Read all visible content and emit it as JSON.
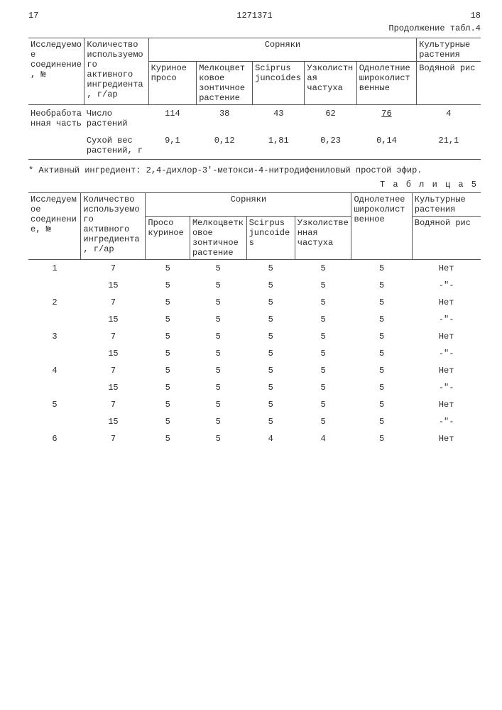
{
  "header": {
    "left_page": "17",
    "doc_number": "1271371",
    "right_page": "18",
    "continuation": "Продолжение табл.4"
  },
  "table4": {
    "col_compound": "Исследуемое соединение, №",
    "col_amount": "Количество используемого активного ингредиента, г/ар",
    "group_weeds": "Сорняки",
    "group_cultivated": "Культурные растения",
    "sub_kurinoe": "Куриное просо",
    "sub_melko": "Мелкоцветковое зонтичное растение",
    "sub_scirpus": "Sciprus juncoides",
    "sub_uzko": "Узколистная частуха",
    "sub_odno": "Однолетние широколиственные",
    "sub_rice": "Водяной рис",
    "row_untreated": "Необработанная часть",
    "row_num_plants": "Число растений",
    "row_dry_weight": "Сухой вес растений, г",
    "num_plants": {
      "v1": "114",
      "v2": "38",
      "v3": "43",
      "v4": "62",
      "v5": "76",
      "v6": "4"
    },
    "dry_weight": {
      "v1": "9,1",
      "v2": "0,12",
      "v3": "1,81",
      "v4": "0,23",
      "v5": "0,14",
      "v6": "21,1"
    }
  },
  "footnote": "* Активный ингредиент: 2,4-дихлор-3'-метокси-4-нитродифениловый простой эфир.",
  "t5_label": "Т а б л и ц а   5",
  "table5": {
    "col_compound": "Исследуемое соединение, №",
    "col_amount": "Количество используемого активного ингредиента, г/ар",
    "group_weeds": "Сорняки",
    "group_cultivated": "Культурные растения",
    "sub_proso": "Просо куриное",
    "sub_melko": "Мелкоцветковое зонтичное растение",
    "sub_scirpus": "Scirpus juncoides",
    "sub_uzko": "Узколиственная частуха",
    "sub_odno": "Однолетнее широколиственное",
    "sub_rice": "Водяной рис",
    "none": "Нет",
    "ditto": "-\"-",
    "rows": [
      {
        "n": "1",
        "amt": "7",
        "v": [
          "5",
          "5",
          "5",
          "5",
          "5"
        ],
        "crop": "Нет"
      },
      {
        "n": "",
        "amt": "15",
        "v": [
          "5",
          "5",
          "5",
          "5",
          "5"
        ],
        "crop": "-\"-"
      },
      {
        "n": "2",
        "amt": "7",
        "v": [
          "5",
          "5",
          "5",
          "5",
          "5"
        ],
        "crop": "Нет"
      },
      {
        "n": "",
        "amt": "15",
        "v": [
          "5",
          "5",
          "5",
          "5",
          "5"
        ],
        "crop": "-\"-"
      },
      {
        "n": "3",
        "amt": "7",
        "v": [
          "5",
          "5",
          "5",
          "5",
          "5"
        ],
        "crop": "Нет"
      },
      {
        "n": "",
        "amt": "15",
        "v": [
          "5",
          "5",
          "5",
          "5",
          "5"
        ],
        "crop": "-\"-"
      },
      {
        "n": "4",
        "amt": "7",
        "v": [
          "5",
          "5",
          "5",
          "5",
          "5"
        ],
        "crop": "Нет"
      },
      {
        "n": "",
        "amt": "15",
        "v": [
          "5",
          "5",
          "5",
          "5",
          "5"
        ],
        "crop": "-\"-"
      },
      {
        "n": "5",
        "amt": "7",
        "v": [
          "5",
          "5",
          "5",
          "5",
          "5"
        ],
        "crop": "Нет"
      },
      {
        "n": "",
        "amt": "15",
        "v": [
          "5",
          "5",
          "5",
          "5",
          "5"
        ],
        "crop": "-\"-"
      },
      {
        "n": "6",
        "amt": "7",
        "v": [
          "5",
          "5",
          "4",
          "4",
          "5"
        ],
        "crop": "Нет"
      }
    ]
  }
}
